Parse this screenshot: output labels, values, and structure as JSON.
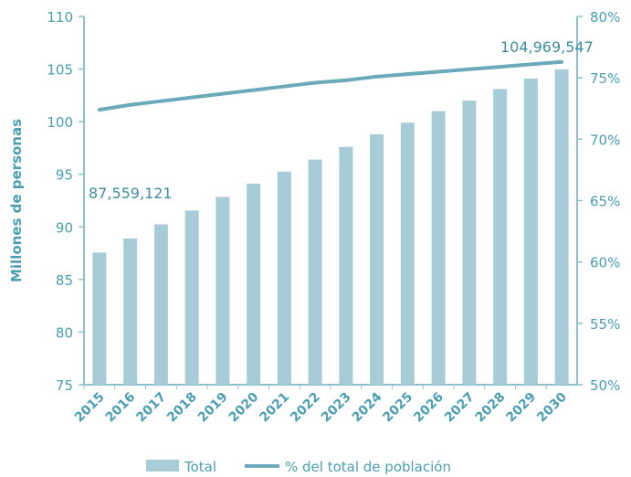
{
  "chart_data": {
    "type": "bar",
    "categories": [
      "2015",
      "2016",
      "2017",
      "2018",
      "2019",
      "2020",
      "2021",
      "2022",
      "2023",
      "2024",
      "2025",
      "2026",
      "2027",
      "2028",
      "2029",
      "2030"
    ],
    "series": [
      {
        "name": "Total",
        "type": "bar",
        "axis": "left",
        "values": [
          87.56,
          88.9,
          90.25,
          91.55,
          92.85,
          94.1,
          95.25,
          96.4,
          97.6,
          98.8,
          99.9,
          101.0,
          102.0,
          103.1,
          104.1,
          104.97
        ]
      },
      {
        "name": "% del total de población",
        "type": "line",
        "axis": "right",
        "values": [
          72.4,
          72.8,
          73.1,
          73.4,
          73.7,
          74.0,
          74.3,
          74.6,
          74.8,
          75.1,
          75.3,
          75.5,
          75.7,
          75.9,
          76.1,
          76.3
        ]
      }
    ],
    "ylabel": "Millones de personas",
    "ylim": [
      75,
      110
    ],
    "yticks": [
      "75",
      "80",
      "85",
      "90",
      "95",
      "100",
      "105",
      "110"
    ],
    "y2lim": [
      50,
      80
    ],
    "y2ticks": [
      "50%",
      "55%",
      "60%",
      "65%",
      "70%",
      "75%",
      "80%"
    ],
    "annotations": [
      "87,559,121",
      "104,969,547"
    ],
    "legend_position": "bottom",
    "grid": false,
    "colors": {
      "bar": "#a8ccd7",
      "line": "#6aaabb",
      "text": "#4a9fb3"
    }
  }
}
